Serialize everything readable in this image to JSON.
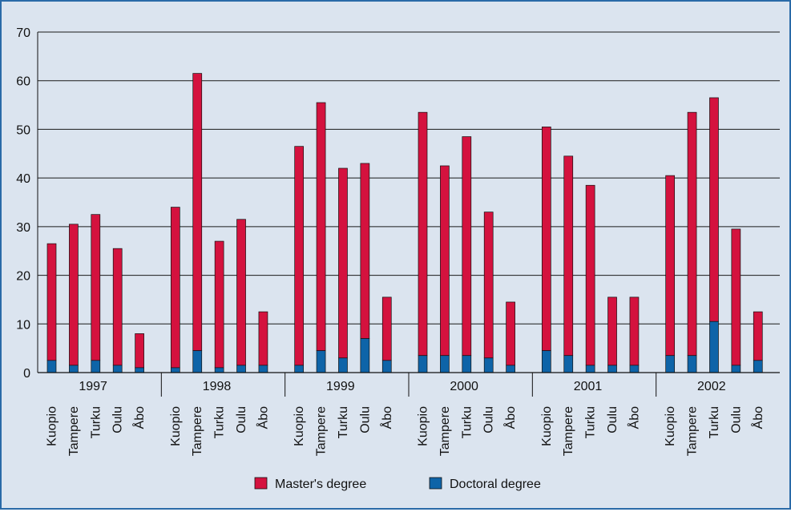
{
  "colors": {
    "background": "#dbe4ef",
    "frame": "#2a6aa8",
    "masters": "#d4123e",
    "doctoral": "#0e64a8",
    "gridline": "#1a1a1a"
  },
  "chart_data": {
    "type": "bar",
    "stacked": true,
    "title": "",
    "xlabel": "",
    "ylabel": "",
    "ylim": [
      0,
      70
    ],
    "yticks": [
      0,
      10,
      20,
      30,
      40,
      50,
      60,
      70
    ],
    "grid": true,
    "legend_position": "bottom",
    "years": [
      "1997",
      "1998",
      "1999",
      "2000",
      "2001",
      "2002"
    ],
    "universities": [
      "Kuopio",
      "Tampere",
      "Turku",
      "Oulu",
      "Åbo"
    ],
    "series": [
      {
        "name": "Master's degree",
        "color": "#d4123e",
        "values": [
          [
            24,
            29,
            30,
            24,
            7
          ],
          [
            33,
            57,
            26,
            30,
            11
          ],
          [
            45,
            51,
            39,
            36,
            13
          ],
          [
            50,
            39,
            45,
            30,
            13
          ],
          [
            46,
            41,
            37,
            14,
            14
          ],
          [
            37,
            50,
            46,
            28,
            10
          ]
        ]
      },
      {
        "name": "Doctoral degree",
        "color": "#0e64a8",
        "values": [
          [
            2.5,
            1.5,
            2.5,
            1.5,
            1
          ],
          [
            1,
            4.5,
            1,
            1.5,
            1.5
          ],
          [
            1.5,
            4.5,
            3,
            7,
            2.5
          ],
          [
            3.5,
            3.5,
            3.5,
            3,
            1.5
          ],
          [
            4.5,
            3.5,
            1.5,
            1.5,
            1.5
          ],
          [
            3.5,
            3.5,
            10.5,
            1.5,
            2.5
          ]
        ]
      }
    ]
  }
}
